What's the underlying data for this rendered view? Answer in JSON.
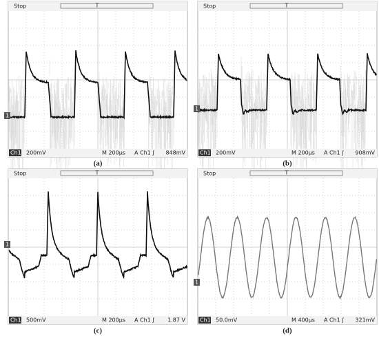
{
  "panels": [
    {
      "status": "Stop",
      "trigger_marker": "T",
      "ground_marker": "1",
      "channel": "Ch1",
      "scale": "200mV",
      "timebase": "M 200µs",
      "trigger": "A  Ch1 ʃ",
      "level": "848mV",
      "caption": "(a)"
    },
    {
      "status": "Stop",
      "trigger_marker": "T",
      "ground_marker": "1",
      "channel": "Ch1",
      "scale": "200mV",
      "timebase": "M 200µs",
      "trigger": "A  Ch1 ʃ",
      "level": "908mV",
      "caption": "(b)"
    },
    {
      "status": "Stop",
      "trigger_marker": "T",
      "ground_marker": "1",
      "channel": "Ch1",
      "scale": "500mV",
      "timebase": "M 200µs",
      "trigger": "A  Ch1 ʃ",
      "level": "1.87 V",
      "caption": "(c)"
    },
    {
      "status": "Stop",
      "trigger_marker": "T",
      "ground_marker": "1",
      "channel": "Ch1",
      "scale": "50.0mV",
      "timebase": "M 400µs",
      "trigger": "A  Ch1 ʃ",
      "level": "321mV",
      "caption": "(d)"
    }
  ]
}
